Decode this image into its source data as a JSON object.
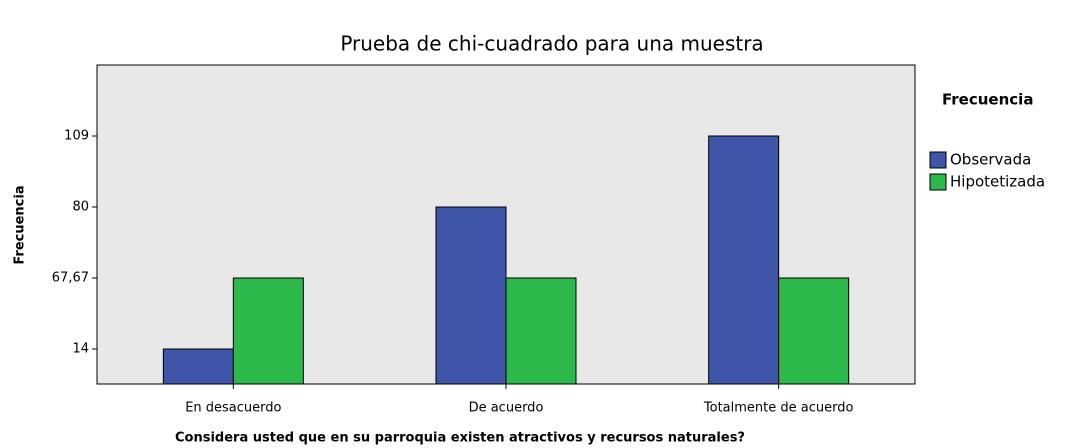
{
  "chart_data": {
    "type": "bar",
    "title": "Prueba de chi-cuadrado para una muestra",
    "x_label": "Considera usted que en su parroquia existen atractivos y recursos naturales?",
    "y_label": "Frecuencia",
    "legend_title": "Frecuencia",
    "legend": "right",
    "categories": [
      "En desacuerdo",
      "De acuerdo",
      "Totalmente de acuerdo"
    ],
    "series": [
      {
        "name": "Observada",
        "color": "#3f55a8",
        "values": [
          14,
          80,
          109
        ]
      },
      {
        "name": "Hipotetizada",
        "color": "#2db84b",
        "values": [
          67.67,
          67.67,
          67.67
        ]
      }
    ],
    "yticks": [
      14,
      {
        "value": 67.67,
        "label": "67,67"
      },
      80,
      109
    ]
  }
}
